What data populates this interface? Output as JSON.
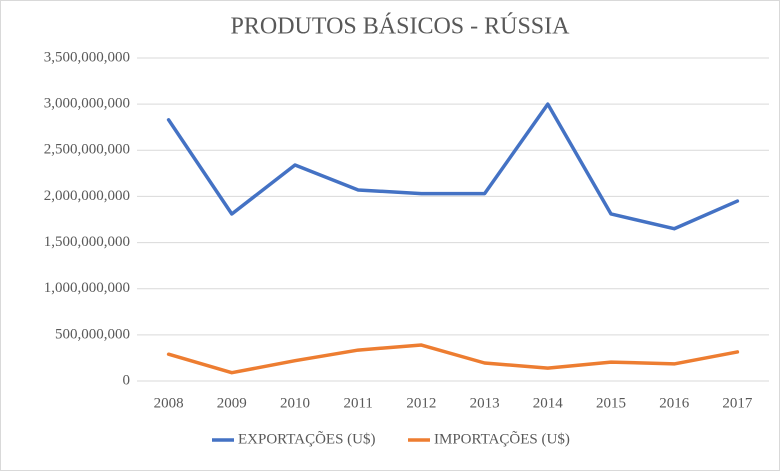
{
  "chart_data": {
    "type": "line",
    "title": "PRODUTOS BÁSICOS - RÚSSIA",
    "categories": [
      "2008",
      "2009",
      "2010",
      "2011",
      "2012",
      "2013",
      "2014",
      "2015",
      "2016",
      "2017"
    ],
    "series": [
      {
        "name": "EXPORTAÇÕES (U$)",
        "color": "#4472c4",
        "values": [
          2830000000,
          1810000000,
          2340000000,
          2070000000,
          2030000000,
          2030000000,
          3000000000,
          1810000000,
          1650000000,
          1950000000
        ]
      },
      {
        "name": "IMPORTAÇÕES (U$)",
        "color": "#ed7d31",
        "values": [
          290000000,
          90000000,
          220000000,
          335000000,
          390000000,
          195000000,
          140000000,
          205000000,
          185000000,
          315000000
        ]
      }
    ],
    "ylim": [
      0,
      3500000000
    ],
    "yticks": [
      0,
      {
        "value": 500000000,
        "label": "500,000,000"
      },
      {
        "value": 1000000000,
        "label": "1,000,000,000"
      },
      {
        "value": 1500000000,
        "label": "1,500,000,000"
      },
      {
        "value": 2000000000,
        "label": "2,000,000,000"
      },
      {
        "value": 2500000000,
        "label": "2,500,000,000"
      },
      {
        "value": 3000000000,
        "label": "3,000,000,000"
      },
      {
        "value": 3500000000,
        "label": "3,500,000,000"
      }
    ],
    "grid": true,
    "legend": "bottom"
  }
}
